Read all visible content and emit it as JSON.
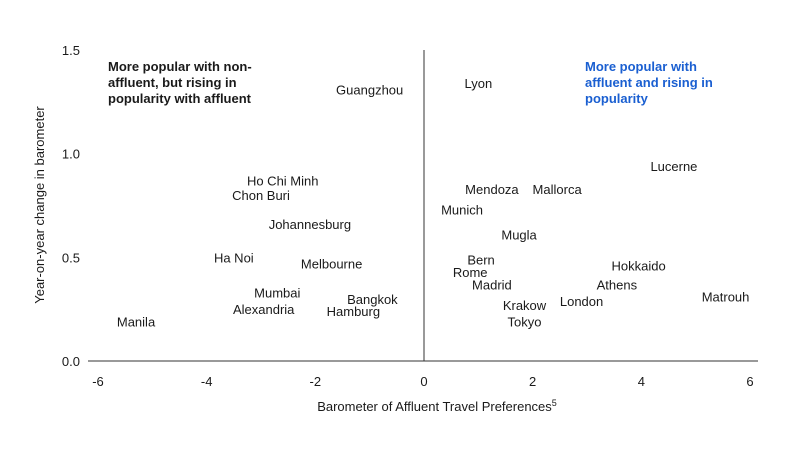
{
  "chart_data": {
    "type": "scatter",
    "xlabel": "Barometer of Affluent Travel Preferences",
    "xlabel_sup": "5",
    "ylabel": "Year-on-year change in barometer",
    "xlim": [
      -6,
      6
    ],
    "ylim": [
      0,
      1.5
    ],
    "x_ticks": [
      -6,
      -4,
      -2,
      0,
      2,
      4,
      6
    ],
    "x_tick_labels": [
      "-6",
      "-4",
      "-2",
      "0",
      "2",
      "4",
      "6"
    ],
    "y_ticks": [
      0,
      0.5,
      1.0,
      1.5
    ],
    "y_tick_labels": [
      "0.0",
      "0.5",
      "1.0",
      "1.5"
    ],
    "grid": false,
    "zero_line": true,
    "markers": "labels-only",
    "colors": {
      "text": "#1a1a1a",
      "axis": "#333333",
      "accent": "#1a5fd1"
    },
    "quadrant_notes": [
      {
        "lines": [
          "More popular with non-",
          "affluent, but rising in",
          "popularity with affluent"
        ],
        "color": "#1a1a1a",
        "quadrant": "top-left"
      },
      {
        "lines": [
          "More popular with",
          "affluent and rising in",
          "popularity"
        ],
        "color": "#1a5fd1",
        "quadrant": "top-right"
      }
    ],
    "points": [
      {
        "label": "Guangzhou",
        "x": -1.0,
        "y": 1.31
      },
      {
        "label": "Lyon",
        "x": 1.0,
        "y": 1.34
      },
      {
        "label": "Ho Chi Minh",
        "x": -2.6,
        "y": 0.87
      },
      {
        "label": "Chon Buri",
        "x": -3.0,
        "y": 0.8
      },
      {
        "label": "Johannesburg",
        "x": -2.1,
        "y": 0.66
      },
      {
        "label": "Lucerne",
        "x": 4.6,
        "y": 0.94
      },
      {
        "label": "Mendoza",
        "x": 1.25,
        "y": 0.83
      },
      {
        "label": "Mallorca",
        "x": 2.45,
        "y": 0.83
      },
      {
        "label": "Munich",
        "x": 0.7,
        "y": 0.73
      },
      {
        "label": "Mugla",
        "x": 1.75,
        "y": 0.61
      },
      {
        "label": "Ha Noi",
        "x": -3.5,
        "y": 0.5
      },
      {
        "label": "Melbourne",
        "x": -1.7,
        "y": 0.47
      },
      {
        "label": "Bern",
        "x": 1.05,
        "y": 0.49
      },
      {
        "label": "Rome",
        "x": 0.85,
        "y": 0.43
      },
      {
        "label": "Madrid",
        "x": 1.25,
        "y": 0.37
      },
      {
        "label": "Hokkaido",
        "x": 3.95,
        "y": 0.46
      },
      {
        "label": "Athens",
        "x": 3.55,
        "y": 0.37
      },
      {
        "label": "London",
        "x": 2.9,
        "y": 0.29
      },
      {
        "label": "Matrouh",
        "x": 5.55,
        "y": 0.31
      },
      {
        "label": "Krakow",
        "x": 1.85,
        "y": 0.27
      },
      {
        "label": "Tokyo",
        "x": 1.85,
        "y": 0.19
      },
      {
        "label": "Mumbai",
        "x": -2.7,
        "y": 0.33
      },
      {
        "label": "Alexandria",
        "x": -2.95,
        "y": 0.25
      },
      {
        "label": "Bangkok",
        "x": -0.95,
        "y": 0.3
      },
      {
        "label": "Hamburg",
        "x": -1.3,
        "y": 0.24
      },
      {
        "label": "Manila",
        "x": -5.3,
        "y": 0.19
      }
    ]
  }
}
